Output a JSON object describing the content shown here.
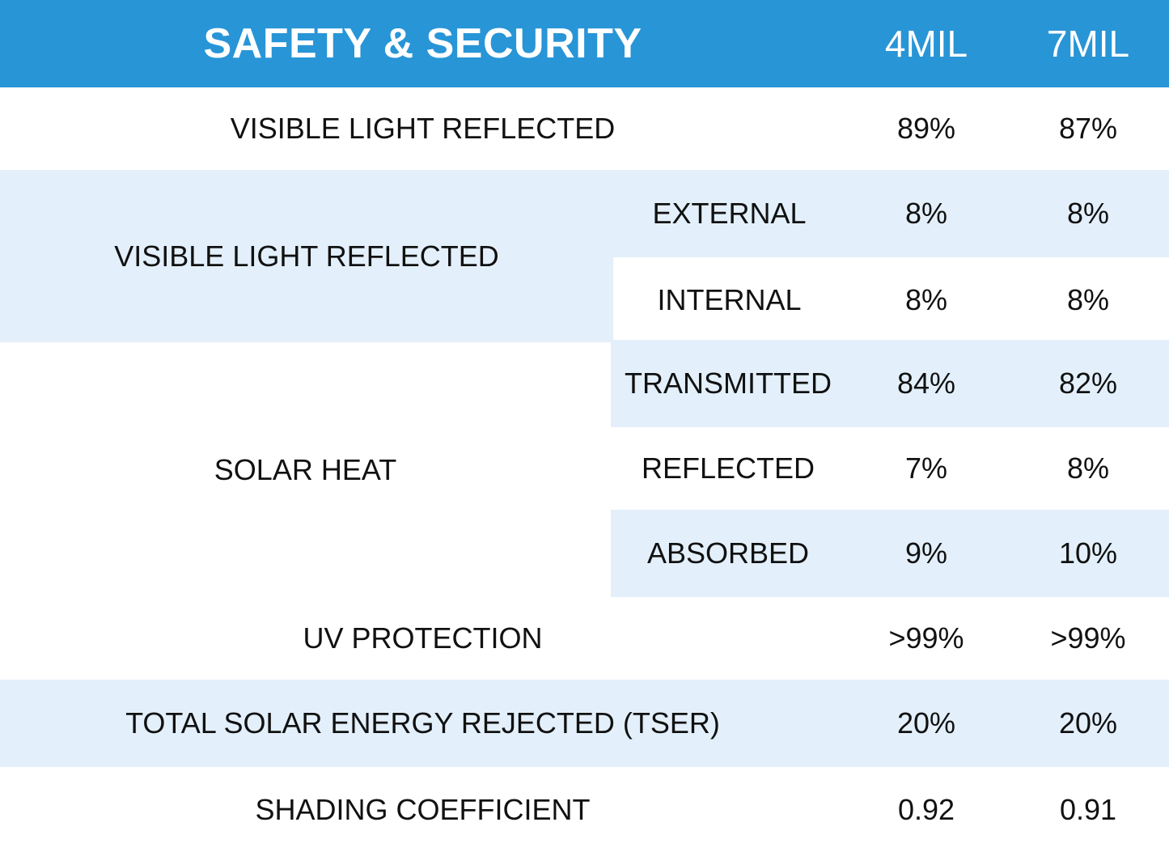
{
  "header": {
    "title": "SAFETY & SECURITY",
    "col1": "4MIL",
    "col2": "7MIL"
  },
  "rows": {
    "vlr_top": {
      "label": "VISIBLE LIGHT REFLECTED",
      "v1": "89%",
      "v2": "87%"
    },
    "vlr_group": {
      "label": "VISIBLE LIGHT REFLECTED",
      "external": {
        "label": "EXTERNAL",
        "v1": "8%",
        "v2": "8%"
      },
      "internal": {
        "label": "INTERNAL",
        "v1": "8%",
        "v2": "8%"
      }
    },
    "solar_heat": {
      "label": "SOLAR HEAT",
      "transmitted": {
        "label": "TRANSMITTED",
        "v1": "84%",
        "v2": "82%"
      },
      "reflected": {
        "label": "REFLECTED",
        "v1": "7%",
        "v2": "8%"
      },
      "absorbed": {
        "label": "ABSORBED",
        "v1": "9%",
        "v2": "10%"
      }
    },
    "uv": {
      "label": "UV PROTECTION",
      "v1": ">99%",
      "v2": ">99%"
    },
    "tser": {
      "label": "TOTAL SOLAR ENERGY REJECTED (TSER)",
      "v1": "20%",
      "v2": "20%"
    },
    "shading": {
      "label": "SHADING COEFFICIENT",
      "v1": "0.92",
      "v2": "0.91"
    }
  },
  "colors": {
    "header": "#2895d7",
    "stripe": "#e3f0fb"
  }
}
